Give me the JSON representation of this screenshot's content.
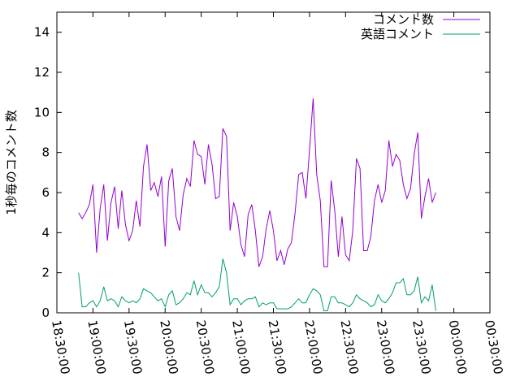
{
  "chart_data": {
    "type": "line",
    "title": "",
    "xlabel": "",
    "ylabel": "1秒毎のコメント数",
    "ylim": [
      0,
      15
    ],
    "y_ticks": [
      0,
      2,
      4,
      6,
      8,
      10,
      12,
      14
    ],
    "x_tick_labels": [
      "18:30:00",
      "19:00:00",
      "19:30:00",
      "20:00:00",
      "20:30:00",
      "21:00:00",
      "21:30:00",
      "22:00:00",
      "22:30:00",
      "23:00:00",
      "23:30:00",
      "00:00:00",
      "00:30:00"
    ],
    "x_range_minutes": [
      0,
      360
    ],
    "x_step_minutes": 3,
    "x_start_minutes": 18,
    "legend": {
      "placement": "top-right"
    },
    "grid": false,
    "series": [
      {
        "name": "コメント数",
        "color": "#9400d3",
        "values": [
          5.0,
          4.7,
          5.0,
          5.4,
          6.4,
          3.0,
          5.2,
          6.4,
          3.6,
          5.5,
          6.3,
          4.2,
          6.1,
          4.4,
          3.6,
          4.1,
          5.6,
          4.3,
          7.3,
          8.4,
          6.1,
          6.5,
          5.8,
          6.8,
          3.3,
          6.6,
          7.2,
          4.8,
          4.1,
          5.9,
          6.7,
          6.3,
          8.6,
          7.9,
          7.8,
          6.4,
          8.4,
          7.4,
          5.7,
          5.8,
          9.2,
          8.8,
          4.1,
          5.5,
          4.8,
          3.4,
          2.8,
          4.9,
          5.4,
          4.1,
          2.3,
          2.8,
          4.2,
          5.1,
          4.1,
          2.6,
          3.1,
          2.4,
          3.2,
          3.5,
          5.0,
          6.9,
          7.0,
          5.7,
          8.1,
          10.7,
          6.9,
          5.6,
          2.3,
          2.3,
          6.6,
          5.1,
          2.8,
          4.8,
          2.9,
          2.6,
          4.1,
          7.7,
          7.2,
          3.1,
          3.1,
          3.8,
          5.6,
          6.4,
          5.5,
          6.1,
          8.6,
          7.3,
          7.9,
          7.6,
          6.4,
          5.7,
          6.2,
          7.9,
          9.0,
          4.7,
          5.8,
          6.7,
          5.5,
          6.0
        ]
      },
      {
        "name": "英語コメント",
        "color": "#009e73",
        "values": [
          2.0,
          0.3,
          0.3,
          0.5,
          0.6,
          0.3,
          0.6,
          1.3,
          0.6,
          0.7,
          0.6,
          0.3,
          0.8,
          0.6,
          0.5,
          0.6,
          0.5,
          0.7,
          1.2,
          1.1,
          1.0,
          0.8,
          0.6,
          0.7,
          0.3,
          0.9,
          1.1,
          0.4,
          0.5,
          0.7,
          1.0,
          0.9,
          1.6,
          0.9,
          1.4,
          1.0,
          1.0,
          0.8,
          1.0,
          1.3,
          2.7,
          2.0,
          0.4,
          0.7,
          0.7,
          0.4,
          0.6,
          0.7,
          0.7,
          0.8,
          0.3,
          0.5,
          0.4,
          0.5,
          0.5,
          0.2,
          0.2,
          0.2,
          0.2,
          0.3,
          0.5,
          0.7,
          0.5,
          0.5,
          0.9,
          1.2,
          1.1,
          0.9,
          0.1,
          0.1,
          0.8,
          0.8,
          0.5,
          0.5,
          0.4,
          0.3,
          0.5,
          0.9,
          0.7,
          0.6,
          0.5,
          0.3,
          0.4,
          0.9,
          0.6,
          0.5,
          0.7,
          1.0,
          1.5,
          1.5,
          1.7,
          0.9,
          0.9,
          1.1,
          1.8,
          0.5,
          0.8,
          0.6,
          1.4,
          0.1
        ]
      }
    ]
  }
}
